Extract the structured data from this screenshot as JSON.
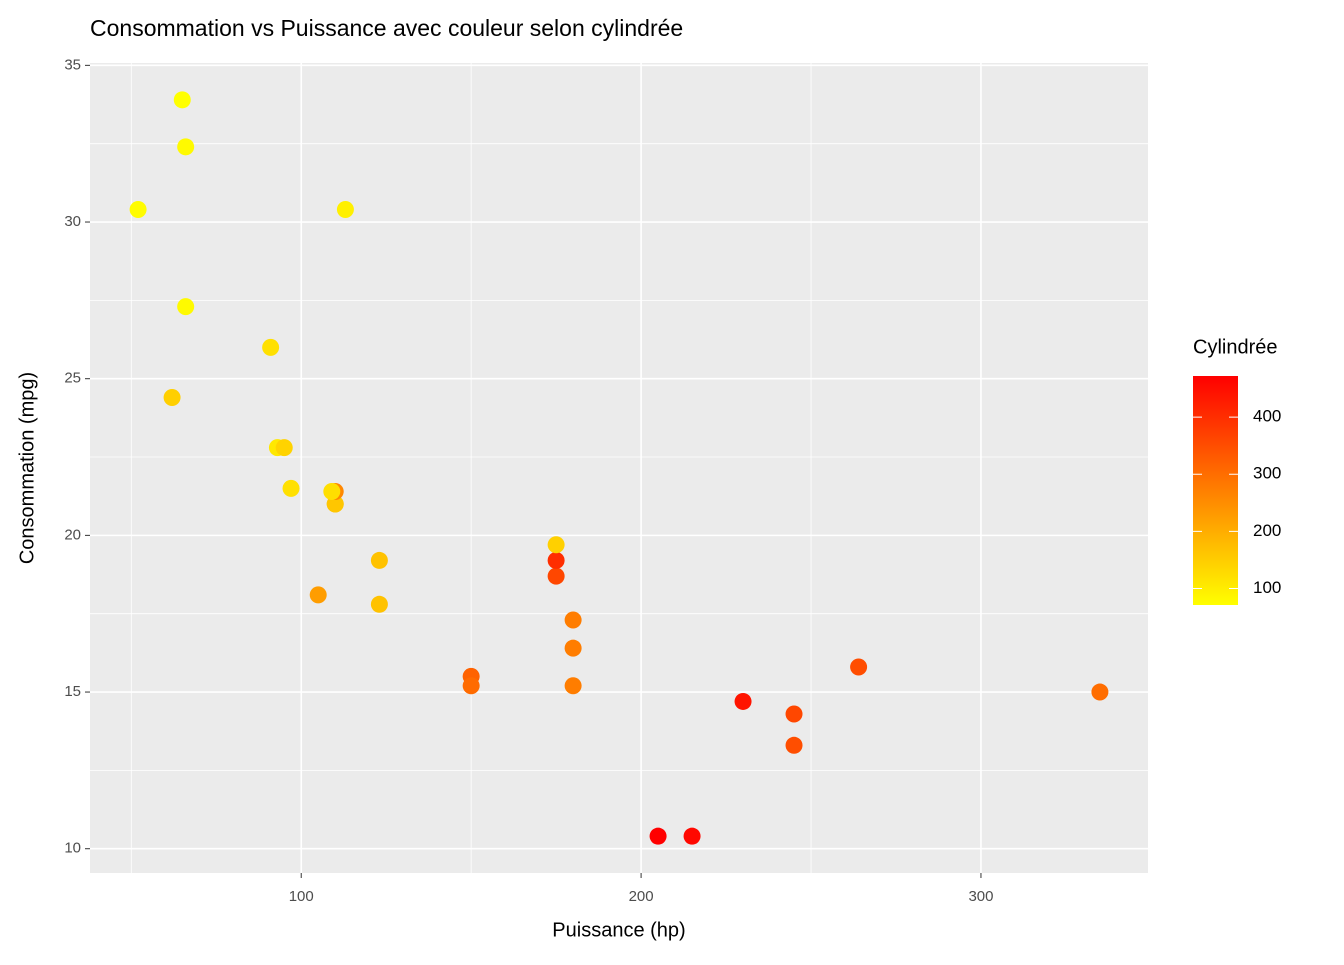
{
  "chart_data": {
    "type": "scatter",
    "title": "Consommation vs Puissance avec couleur selon cylindrée",
    "x_label": "Puissance (hp)",
    "y_label": "Consommation (mpg)",
    "x": [
      110,
      110,
      93,
      110,
      175,
      105,
      245,
      62,
      95,
      123,
      123,
      180,
      180,
      180,
      205,
      215,
      230,
      66,
      52,
      65,
      97,
      150,
      150,
      245,
      175,
      66,
      91,
      113,
      264,
      175,
      335,
      109
    ],
    "values": [
      21,
      21,
      22.8,
      21.4,
      18.7,
      18.1,
      14.3,
      24.4,
      22.8,
      19.2,
      17.8,
      16.4,
      17.3,
      15.2,
      10.4,
      10.4,
      14.7,
      32.4,
      30.4,
      33.9,
      21.5,
      15.5,
      15.2,
      13.3,
      19.2,
      27.3,
      26,
      30.4,
      15.8,
      19.7,
      15,
      21.4
    ],
    "color_values": [
      160,
      160,
      108,
      258,
      360,
      225,
      360,
      146.7,
      140.8,
      167.6,
      167.6,
      275.8,
      275.8,
      275.8,
      472,
      460,
      440,
      78.7,
      75.7,
      71.1,
      120.1,
      318,
      304,
      350,
      400,
      79,
      120.3,
      95.1,
      351,
      145,
      301,
      121
    ],
    "colorbar": {
      "title": "Cylindrée",
      "low": "#ffff00",
      "high": "#ff0000",
      "lim": [
        71.1,
        472
      ],
      "ticks": [
        100,
        200,
        300,
        400
      ]
    },
    "xlim": [
      37.85,
      349.15
    ],
    "ylim": [
      9.225,
      35.075
    ],
    "xticks": [
      100,
      200,
      300
    ],
    "yticks": [
      10,
      15,
      20,
      25,
      30,
      35
    ],
    "xminor": [
      50,
      150,
      250
    ],
    "yminor": [
      12.5,
      17.5,
      22.5,
      27.5,
      32.5
    ],
    "grid": true
  }
}
